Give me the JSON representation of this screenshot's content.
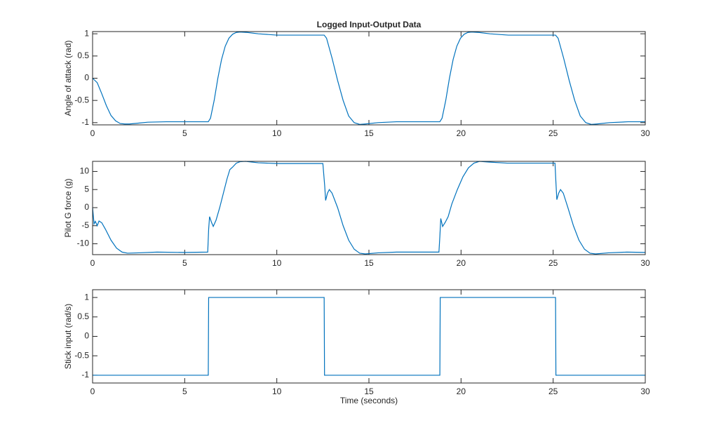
{
  "chart_data": [
    {
      "type": "line",
      "title": "Logged Input-Output Data",
      "ylabel": "Angle of attack (rad)",
      "color": "#0072bd",
      "x": [
        0,
        0.25,
        0.5,
        0.75,
        1,
        1.25,
        1.5,
        1.75,
        2,
        2.5,
        3,
        4,
        5,
        6.28,
        6.4,
        6.6,
        6.8,
        7,
        7.2,
        7.4,
        7.6,
        7.8,
        8,
        8.4,
        9,
        10,
        11,
        12.57,
        12.7,
        13,
        13.3,
        13.6,
        13.9,
        14.2,
        14.5,
        14.8,
        15.5,
        16.5,
        18.85,
        18.97,
        19.17,
        19.37,
        19.57,
        19.77,
        19.97,
        20.17,
        20.37,
        20.57,
        20.97,
        21.57,
        22.57,
        23.57,
        25.13,
        25.27,
        25.57,
        25.87,
        26.17,
        26.47,
        26.77,
        27.07,
        27.37,
        28.07,
        29.07,
        30
      ],
      "values": [
        0,
        -0.1,
        -0.35,
        -0.62,
        -0.84,
        -0.96,
        -1.02,
        -1.03,
        -1.03,
        -1.01,
        -0.99,
        -0.98,
        -0.98,
        -0.98,
        -0.9,
        -0.5,
        0,
        0.42,
        0.72,
        0.9,
        0.99,
        1.03,
        1.04,
        1.03,
        1.0,
        0.97,
        0.97,
        0.97,
        0.9,
        0.45,
        -0.05,
        -0.5,
        -0.85,
        -1.0,
        -1.04,
        -1.03,
        -1.0,
        -0.98,
        -0.98,
        -0.9,
        -0.5,
        0,
        0.42,
        0.72,
        0.9,
        0.99,
        1.03,
        1.04,
        1.03,
        1.0,
        0.97,
        0.97,
        0.97,
        0.9,
        0.45,
        -0.05,
        -0.5,
        -0.85,
        -1.0,
        -1.04,
        -1.03,
        -1.0,
        -0.98,
        -0.98
      ],
      "xlim": [
        0,
        30
      ],
      "xticks": [
        0,
        5,
        10,
        15,
        20,
        25,
        30
      ],
      "ylim": [
        -1.05,
        1.05
      ],
      "yticks": [
        -1,
        -0.5,
        0,
        0.5,
        1
      ]
    },
    {
      "type": "line",
      "ylabel": "Pilot G force (g)",
      "color": "#0072bd",
      "x": [
        0,
        0.08,
        0.15,
        0.25,
        0.35,
        0.5,
        0.7,
        1,
        1.3,
        1.6,
        1.9,
        2.5,
        3.5,
        5,
        6.25,
        6.3,
        6.35,
        6.45,
        6.55,
        6.7,
        6.9,
        7.1,
        7.3,
        7.45,
        7.6,
        7.8,
        8,
        8.3,
        9,
        10,
        12.5,
        12.6,
        12.65,
        12.75,
        12.85,
        13,
        13.3,
        13.6,
        13.9,
        14.2,
        14.5,
        14.8,
        15.5,
        16.5,
        18.8,
        18.85,
        18.9,
        19,
        19.15,
        19.3,
        19.5,
        19.8,
        20.1,
        20.4,
        20.7,
        21,
        21.5,
        22.5,
        25.1,
        25.15,
        25.2,
        25.3,
        25.4,
        25.55,
        25.8,
        26.1,
        26.4,
        26.7,
        27,
        27.3,
        28,
        29,
        30
      ],
      "values": [
        0,
        -4.5,
        -3.8,
        -5,
        -3.7,
        -4.2,
        -6,
        -9,
        -11.2,
        -12.3,
        -12.6,
        -12.5,
        -12.3,
        -12.4,
        -12.3,
        -6,
        -2.5,
        -4,
        -5.2,
        -3.5,
        0,
        4,
        8,
        10.5,
        11.2,
        12.3,
        12.7,
        12.8,
        12.4,
        12.2,
        12.2,
        6,
        2,
        4,
        5,
        4,
        0,
        -5,
        -9,
        -11.5,
        -12.6,
        -12.8,
        -12.5,
        -12.3,
        -12.3,
        -8,
        -3,
        -5.2,
        -4,
        -2.5,
        1,
        5,
        8.5,
        11,
        12.3,
        12.8,
        12.6,
        12.3,
        12.3,
        7,
        2.2,
        4,
        5,
        4,
        0,
        -5,
        -9,
        -11.5,
        -12.6,
        -12.8,
        -12.5,
        -12.3,
        -12.4
      ],
      "xlim": [
        0,
        30
      ],
      "xticks": [
        0,
        5,
        10,
        15,
        20,
        25,
        30
      ],
      "ylim": [
        -13,
        12.8
      ],
      "yticks": [
        -10,
        -5,
        0,
        5,
        10
      ]
    },
    {
      "type": "line",
      "ylabel": "Stick input (rad/s)",
      "xlabel": "Time (seconds)",
      "color": "#0072bd",
      "x": [
        0,
        6.28,
        6.3,
        12.57,
        12.59,
        18.85,
        18.87,
        25.13,
        25.15,
        30
      ],
      "values": [
        -1,
        -1,
        1,
        1,
        -1,
        -1,
        1,
        1,
        -1,
        -1
      ],
      "xlim": [
        0,
        30
      ],
      "xticks": [
        0,
        5,
        10,
        15,
        20,
        25,
        30
      ],
      "ylim": [
        -1.2,
        1.2
      ],
      "yticks": [
        -1,
        -0.5,
        0,
        0.5,
        1
      ]
    }
  ]
}
